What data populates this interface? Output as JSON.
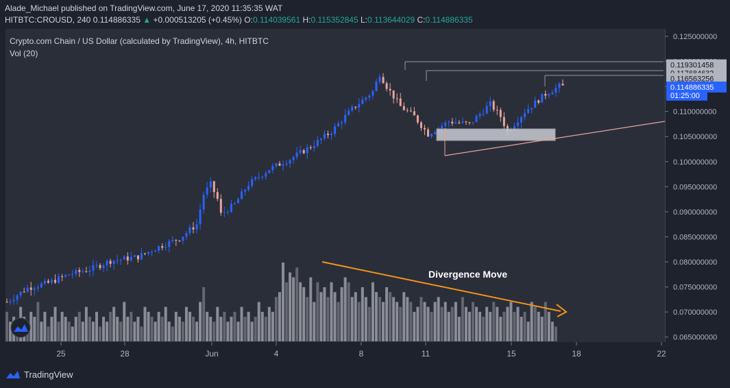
{
  "header": {
    "publish_line": "Alade_Michael published on TradingView.com, June 17, 2020 11:35:35 WAT",
    "symbol": "HITBTC:CROUSD, 240",
    "last": "0.114886335",
    "change_arrow": "▲",
    "change": "+0.000513205 (+0.45%)",
    "o_label": "O:",
    "o_val": "0.114039561",
    "h_label": "H:",
    "h_val": "0.115352845",
    "l_label": "L:",
    "l_val": "0.113644029",
    "c_label": "C:",
    "c_val": "0.114886335"
  },
  "legend": {
    "title": "Crypto.com Chain / US Dollar (calculated by TradingView), 4h, HITBTC",
    "volume": "Vol (20)"
  },
  "annotation": "Divergence Move",
  "footer_brand": "TradingView",
  "colors": {
    "background": "#2a2e39",
    "up": "#2962ff",
    "down": "#e8a59a",
    "volume": "#9598a1",
    "arrow": "#f7931a",
    "zone": "#b2b5be",
    "trendline": "#e8a59a",
    "price_badge": "#2962ff"
  },
  "chart_data": {
    "type": "candlestick",
    "title": "Crypto.com Chain / US Dollar (calculated by TradingView), 4h, HITBTC",
    "x_ticks": [
      "25",
      "28",
      "Jun",
      "4",
      "8",
      "11",
      "15",
      "18",
      "22"
    ],
    "y_ticks": [
      "0.065000000",
      "0.070000000",
      "0.075000000",
      "0.080000000",
      "0.085000000",
      "0.090000000",
      "0.095000000",
      "0.100000000",
      "0.105000000",
      "0.110000000",
      "0.115000000",
      "0.120000000",
      "0.125000000"
    ],
    "ylim": [
      0.064,
      0.1265
    ],
    "price_labels": [
      {
        "text": "0.119301458",
        "value": 0.119301458,
        "style": "gray"
      },
      {
        "text": "0.117684632",
        "value": 0.117684632,
        "style": "gray"
      },
      {
        "text": "0.116563256",
        "value": 0.116563256,
        "style": "gray"
      },
      {
        "text": "0.114886335",
        "value": 0.114886335,
        "style": "blue"
      },
      {
        "text": "01:25:00",
        "value": 0.11326,
        "style": "blue"
      }
    ],
    "candle_close_trend": [
      [
        0,
        0.072
      ],
      [
        6,
        0.0748
      ],
      [
        12,
        0.0758
      ],
      [
        18,
        0.0775
      ],
      [
        24,
        0.0785
      ],
      [
        30,
        0.0802
      ],
      [
        38,
        0.081
      ],
      [
        44,
        0.083
      ],
      [
        50,
        0.0847
      ],
      [
        55,
        0.0875
      ],
      [
        57,
        0.0935
      ],
      [
        59,
        0.0955
      ],
      [
        61,
        0.0925
      ],
      [
        62,
        0.0895
      ],
      [
        66,
        0.0915
      ],
      [
        70,
        0.0955
      ],
      [
        76,
        0.0985
      ],
      [
        82,
        0.1005
      ],
      [
        88,
        0.103
      ],
      [
        94,
        0.106
      ],
      [
        100,
        0.1105
      ],
      [
        106,
        0.114
      ],
      [
        108,
        0.1175
      ],
      [
        110,
        0.115
      ],
      [
        114,
        0.111
      ],
      [
        118,
        0.109
      ],
      [
        122,
        0.1055
      ],
      [
        128,
        0.108
      ],
      [
        134,
        0.1075
      ],
      [
        140,
        0.1115
      ],
      [
        143,
        0.109
      ],
      [
        145,
        0.106
      ],
      [
        150,
        0.11
      ],
      [
        156,
        0.1135
      ],
      [
        160,
        0.115
      ]
    ],
    "volume_pattern": [
      6,
      4,
      5,
      3,
      7,
      5,
      4,
      6,
      5,
      8,
      4,
      6,
      3,
      5,
      7,
      4,
      6,
      5,
      4,
      3,
      5,
      6,
      4,
      7,
      5,
      4,
      6,
      3,
      5,
      4,
      6,
      7,
      5,
      4,
      8,
      5,
      6,
      4,
      5,
      3,
      7,
      6,
      5,
      4,
      6,
      5,
      7,
      4,
      3,
      6,
      5,
      4,
      7,
      6,
      5,
      4,
      8,
      11,
      6,
      5,
      4,
      7,
      5,
      6,
      4,
      5,
      6,
      4,
      7,
      5,
      6,
      4,
      5,
      8,
      6,
      5,
      7,
      6,
      9,
      10,
      16,
      12,
      14,
      13,
      15,
      12,
      11,
      9,
      13,
      8,
      12,
      10,
      11,
      9,
      12,
      10,
      8,
      11,
      13,
      12,
      9,
      10,
      8,
      11,
      9,
      7,
      12,
      10,
      9,
      8,
      11,
      10,
      9,
      8,
      7,
      10,
      9,
      8,
      6,
      7,
      9,
      8,
      7,
      6,
      8,
      9,
      7,
      8,
      6,
      7,
      8,
      5,
      9,
      7,
      6,
      8,
      7,
      6,
      5,
      7,
      6,
      8,
      7,
      5,
      6,
      7,
      8,
      6,
      7,
      5,
      6,
      4,
      8,
      7,
      6,
      5,
      8,
      6,
      4,
      3
    ]
  }
}
